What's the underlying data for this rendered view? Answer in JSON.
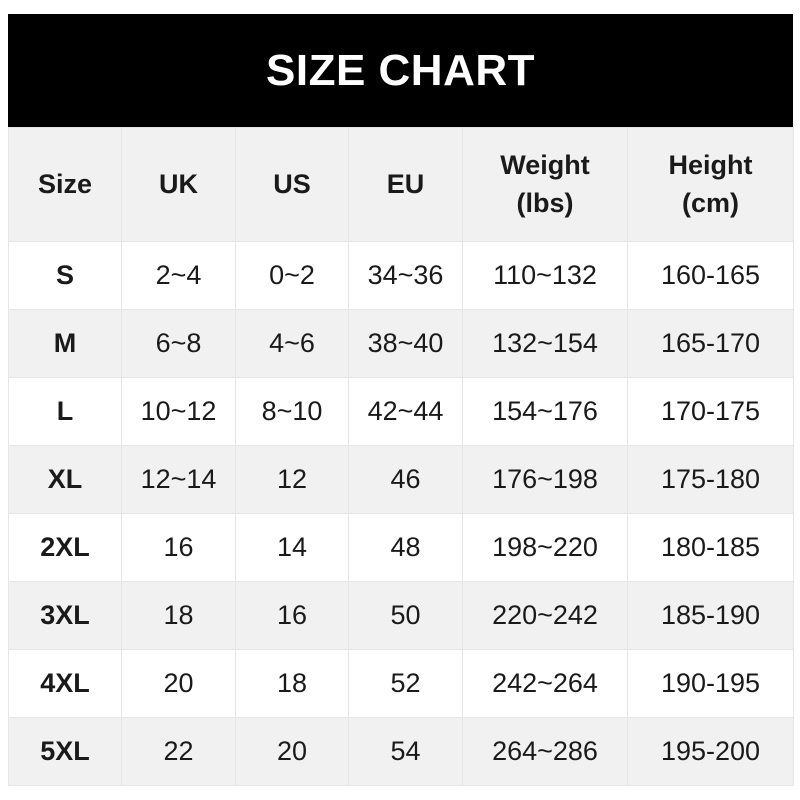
{
  "title": "SIZE CHART",
  "headers": [
    {
      "line1": "Size",
      "line2": ""
    },
    {
      "line1": "UK",
      "line2": ""
    },
    {
      "line1": "US",
      "line2": ""
    },
    {
      "line1": "EU",
      "line2": ""
    },
    {
      "line1": "Weight",
      "line2": "(lbs)"
    },
    {
      "line1": "Height",
      "line2": "(cm)"
    }
  ],
  "rows": [
    [
      "S",
      "2~4",
      "0~2",
      "34~36",
      "110~132",
      "160-165"
    ],
    [
      "M",
      "6~8",
      "4~6",
      "38~40",
      "132~154",
      "165-170"
    ],
    [
      "L",
      "10~12",
      "8~10",
      "42~44",
      "154~176",
      "170-175"
    ],
    [
      "XL",
      "12~14",
      "12",
      "46",
      "176~198",
      "175-180"
    ],
    [
      "2XL",
      "16",
      "14",
      "48",
      "198~220",
      "180-185"
    ],
    [
      "3XL",
      "18",
      "16",
      "50",
      "220~242",
      "185-190"
    ],
    [
      "4XL",
      "20",
      "18",
      "52",
      "242~264",
      "190-195"
    ],
    [
      "5XL",
      "22",
      "20",
      "54",
      "264~286",
      "195-200"
    ]
  ]
}
